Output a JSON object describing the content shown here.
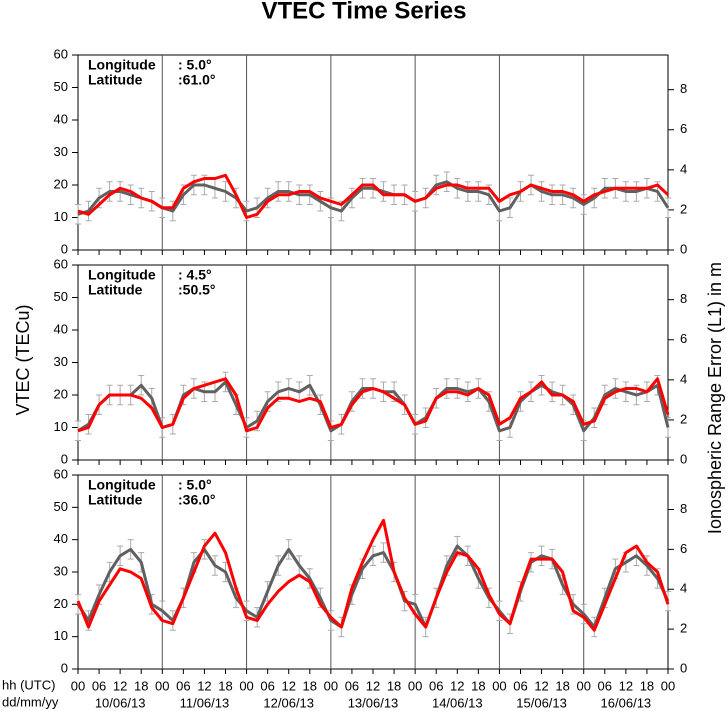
{
  "title": "VTEC Time Series",
  "ylabel": "VTEC (TECu)",
  "y2label": "Ionospheric Range Error (L1) in m",
  "xlabel_lines": [
    "hh (UTC)",
    "dd/mm/yy"
  ],
  "xlim": [
    0,
    168
  ],
  "xticks": [
    {
      "value": 0,
      "label": "00"
    },
    {
      "value": 6,
      "label": "06"
    },
    {
      "value": 12,
      "label": "12"
    },
    {
      "value": 18,
      "label": "18"
    },
    {
      "value": 24,
      "label": "00"
    },
    {
      "value": 30,
      "label": "06"
    },
    {
      "value": 36,
      "label": "12"
    },
    {
      "value": 42,
      "label": "18"
    },
    {
      "value": 48,
      "label": "00"
    },
    {
      "value": 54,
      "label": "06"
    },
    {
      "value": 60,
      "label": "12"
    },
    {
      "value": 66,
      "label": "18"
    },
    {
      "value": 72,
      "label": "00"
    },
    {
      "value": 78,
      "label": "06"
    },
    {
      "value": 84,
      "label": "12"
    },
    {
      "value": 90,
      "label": "18"
    },
    {
      "value": 96,
      "label": "00"
    },
    {
      "value": 102,
      "label": "06"
    },
    {
      "value": 108,
      "label": "12"
    },
    {
      "value": 114,
      "label": "18"
    },
    {
      "value": 120,
      "label": "00"
    },
    {
      "value": 126,
      "label": "06"
    },
    {
      "value": 132,
      "label": "12"
    },
    {
      "value": 138,
      "label": "18"
    },
    {
      "value": 144,
      "label": "00"
    },
    {
      "value": 150,
      "label": "06"
    },
    {
      "value": 156,
      "label": "12"
    },
    {
      "value": 162,
      "label": "18"
    },
    {
      "value": 168,
      "label": "00"
    }
  ],
  "day_labels": [
    {
      "value": 12,
      "label": "10/06/13"
    },
    {
      "value": 36,
      "label": "11/06/13"
    },
    {
      "value": 60,
      "label": "12/06/13"
    },
    {
      "value": 84,
      "label": "13/06/13"
    },
    {
      "value": 108,
      "label": "14/06/13"
    },
    {
      "value": 132,
      "label": "15/06/13"
    },
    {
      "value": 156,
      "label": "16/06/13"
    }
  ],
  "chart_data": [
    {
      "type": "line",
      "annotations": [
        {
          "label": "Longitude",
          "value": ":  5.0°"
        },
        {
          "label": "Latitude",
          "value": ":61.0°"
        }
      ],
      "x": [
        0,
        3,
        6,
        9,
        12,
        15,
        18,
        21,
        24,
        27,
        30,
        33,
        36,
        39,
        42,
        45,
        48,
        51,
        54,
        57,
        60,
        63,
        66,
        69,
        72,
        75,
        78,
        81,
        84,
        87,
        90,
        93,
        96,
        99,
        102,
        105,
        108,
        111,
        114,
        117,
        120,
        123,
        126,
        129,
        132,
        135,
        138,
        141,
        144,
        147,
        150,
        153,
        156,
        159,
        162,
        165,
        168
      ],
      "ylim": [
        0,
        60
      ],
      "yticks": [
        0,
        10,
        20,
        30,
        40,
        50,
        60
      ],
      "y2lim": [
        0,
        9.73
      ],
      "y2ticks": [
        0,
        2,
        4,
        6,
        8
      ],
      "series": [
        {
          "color": "#606060",
          "error": 3,
          "values": [
            11,
            12,
            16,
            18,
            18,
            17,
            16,
            15,
            13,
            12,
            17,
            20,
            20,
            19,
            18,
            16,
            12,
            13,
            16,
            18,
            18,
            17,
            17,
            15,
            13,
            12,
            16,
            19,
            19,
            18,
            17,
            17,
            15,
            16,
            20,
            21,
            19,
            18,
            18,
            17,
            12,
            13,
            18,
            20,
            18,
            17,
            17,
            16,
            14,
            16,
            19,
            19,
            18,
            18,
            19,
            18,
            13
          ]
        },
        {
          "color": "#ff0000",
          "values": [
            12,
            11,
            14,
            17,
            19,
            18,
            16,
            15,
            13,
            13,
            19,
            21,
            22,
            22,
            23,
            17,
            10,
            11,
            15,
            17,
            17,
            18,
            18,
            16,
            15,
            14,
            17,
            20,
            20,
            17,
            17,
            17,
            15,
            16,
            19,
            20,
            20,
            19,
            19,
            19,
            15,
            17,
            18,
            20,
            19,
            18,
            18,
            17,
            15,
            17,
            18,
            19,
            19,
            19,
            19,
            20,
            17
          ]
        }
      ]
    },
    {
      "type": "line",
      "annotations": [
        {
          "label": "Longitude",
          "value": ":  4.5°"
        },
        {
          "label": "Latitude",
          "value": ":50.5°"
        }
      ],
      "x": [
        0,
        3,
        6,
        9,
        12,
        15,
        18,
        21,
        24,
        27,
        30,
        33,
        36,
        39,
        42,
        45,
        48,
        51,
        54,
        57,
        60,
        63,
        66,
        69,
        72,
        75,
        78,
        81,
        84,
        87,
        90,
        93,
        96,
        99,
        102,
        105,
        108,
        111,
        114,
        117,
        120,
        123,
        126,
        129,
        132,
        135,
        138,
        141,
        144,
        147,
        150,
        153,
        156,
        159,
        162,
        165,
        168
      ],
      "ylim": [
        0,
        60
      ],
      "yticks": [
        0,
        10,
        20,
        30,
        40,
        50,
        60
      ],
      "y2lim": [
        0,
        9.73
      ],
      "y2ticks": [
        0,
        2,
        4,
        6,
        8
      ],
      "series": [
        {
          "color": "#606060",
          "error": 3,
          "values": [
            9,
            11,
            17,
            20,
            20,
            20,
            23,
            19,
            10,
            11,
            20,
            22,
            21,
            21,
            24,
            17,
            10,
            12,
            18,
            21,
            22,
            21,
            23,
            17,
            9,
            11,
            18,
            22,
            22,
            21,
            21,
            17,
            11,
            13,
            19,
            22,
            22,
            21,
            22,
            18,
            9,
            10,
            18,
            21,
            23,
            21,
            20,
            17,
            9,
            13,
            20,
            22,
            21,
            20,
            21,
            23,
            10
          ]
        },
        {
          "color": "#ff0000",
          "values": [
            9,
            10,
            17,
            20,
            20,
            20,
            19,
            16,
            10,
            11,
            19,
            22,
            23,
            24,
            25,
            20,
            9,
            10,
            16,
            19,
            19,
            18,
            19,
            18,
            10,
            11,
            17,
            21,
            22,
            21,
            19,
            17,
            11,
            12,
            19,
            21,
            21,
            20,
            22,
            20,
            11,
            13,
            19,
            21,
            24,
            20,
            20,
            18,
            11,
            12,
            19,
            21,
            22,
            22,
            21,
            25,
            14
          ]
        }
      ]
    },
    {
      "type": "line",
      "annotations": [
        {
          "label": "Longitude",
          "value": ":  5.0°"
        },
        {
          "label": "Latitude",
          "value": ":36.0°"
        }
      ],
      "x": [
        0,
        3,
        6,
        9,
        12,
        15,
        18,
        21,
        24,
        27,
        30,
        33,
        36,
        39,
        42,
        45,
        48,
        51,
        54,
        57,
        60,
        63,
        66,
        69,
        72,
        75,
        78,
        81,
        84,
        87,
        90,
        93,
        96,
        99,
        102,
        105,
        108,
        111,
        114,
        117,
        120,
        123,
        126,
        129,
        132,
        135,
        138,
        141,
        144,
        147,
        150,
        153,
        156,
        159,
        162,
        165,
        168
      ],
      "ylim": [
        0,
        60
      ],
      "yticks": [
        0,
        10,
        20,
        30,
        40,
        50,
        60
      ],
      "y2lim": [
        0,
        9.73
      ],
      "y2ticks": [
        0,
        2,
        4,
        6,
        8
      ],
      "series": [
        {
          "color": "#606060",
          "error": 3,
          "values": [
            20,
            15,
            23,
            30,
            35,
            37,
            33,
            20,
            18,
            15,
            22,
            33,
            37,
            32,
            30,
            22,
            18,
            16,
            24,
            32,
            37,
            32,
            28,
            22,
            15,
            13,
            23,
            31,
            35,
            36,
            30,
            21,
            20,
            13,
            22,
            32,
            38,
            35,
            28,
            22,
            18,
            14,
            24,
            33,
            35,
            34,
            26,
            20,
            17,
            13,
            22,
            31,
            33,
            35,
            32,
            28,
            21
          ]
        },
        {
          "color": "#ff0000",
          "values": [
            21,
            13,
            21,
            26,
            31,
            30,
            28,
            19,
            15,
            14,
            22,
            30,
            38,
            42,
            36,
            25,
            16,
            15,
            20,
            24,
            27,
            29,
            27,
            20,
            16,
            13,
            25,
            33,
            40,
            46,
            30,
            22,
            17,
            13,
            22,
            30,
            36,
            35,
            31,
            23,
            17,
            14,
            25,
            34,
            34,
            34,
            30,
            18,
            16,
            12,
            20,
            28,
            36,
            38,
            33,
            30,
            20
          ]
        }
      ]
    }
  ]
}
